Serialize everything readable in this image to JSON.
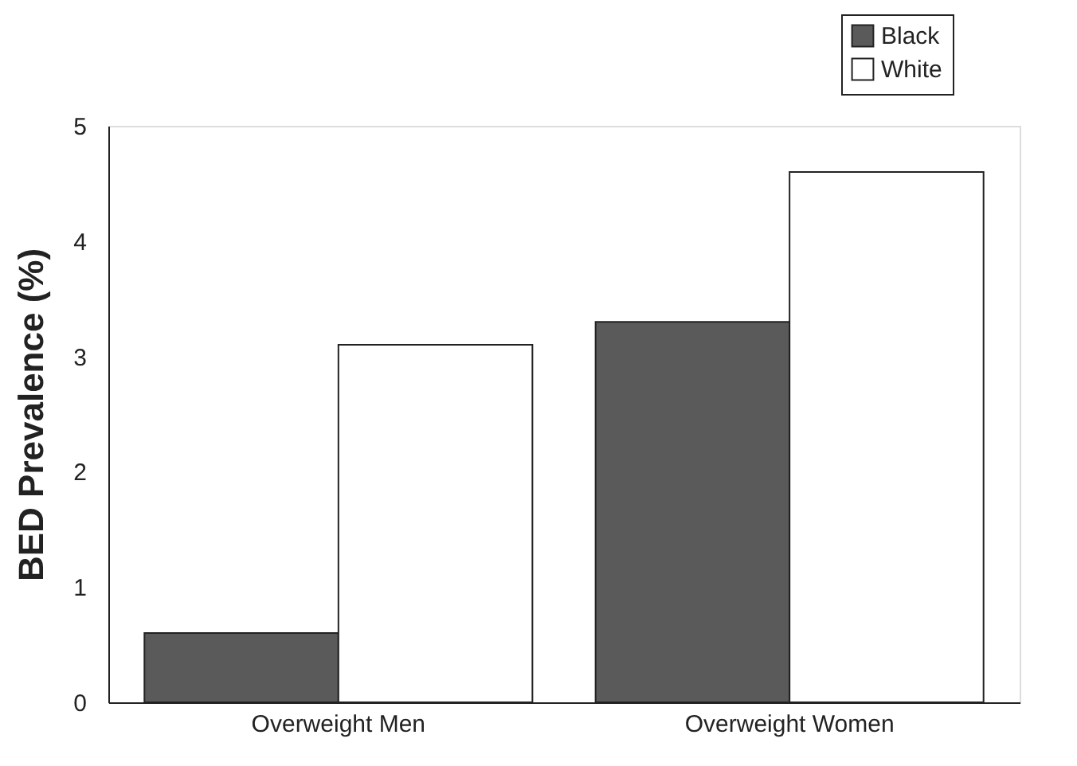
{
  "chart_data": {
    "type": "bar",
    "ylabel": "BED Prevalence (%)",
    "categories": [
      "Overweight Men",
      "Overweight Women"
    ],
    "series": [
      {
        "name": "Black",
        "color": "#5a5a5a",
        "values": [
          0.6,
          3.3
        ]
      },
      {
        "name": "White",
        "color": "#ffffff",
        "values": [
          3.1,
          4.6
        ]
      }
    ],
    "ylim": [
      0,
      5
    ],
    "yticks": [
      0,
      1,
      2,
      3,
      4,
      5
    ],
    "grid": false,
    "legend": "top right"
  }
}
